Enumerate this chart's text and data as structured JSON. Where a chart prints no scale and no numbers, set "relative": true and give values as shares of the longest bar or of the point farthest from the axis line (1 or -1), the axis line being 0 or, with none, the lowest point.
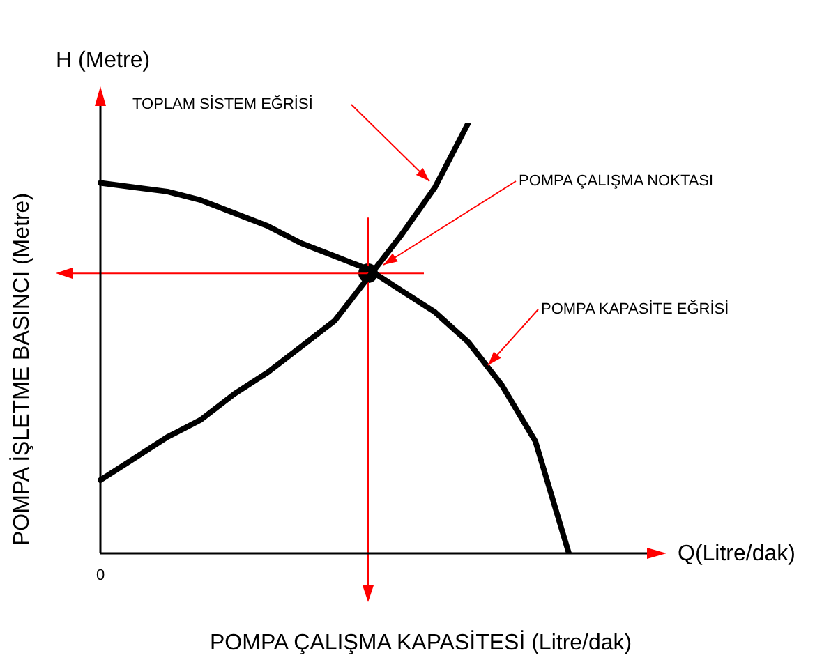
{
  "chart_data": {
    "type": "line",
    "relative": true,
    "xlabel": "POMPA ÇALIŞMA KAPASİTESİ (Litre/dak)",
    "ylabel": "POMPA İŞLETME BASINCI (Metre)",
    "categories": [
      null,
      null,
      null,
      null,
      null,
      null,
      null,
      null,
      null,
      null,
      null,
      null,
      null,
      null,
      null
    ],
    "series": [
      {
        "color": "#000000",
        "values": [
          0.86,
          0.85,
          0.84,
          0.82,
          0.79,
          0.76,
          0.72,
          0.69,
          0.66,
          0.61,
          0.56,
          0.49,
          0.39,
          0.26,
          0
        ]
      },
      {
        "color": "#000000",
        "values": [
          0.17,
          0.22,
          0.27,
          0.31,
          0.37,
          0.42,
          0.48,
          0.54,
          0.64,
          0.74,
          0.85,
          1,
          null,
          null,
          null
        ]
      }
    ],
    "marker": "none",
    "line_style": "solid",
    "ref_lines": [
      {
        "axis": "y",
        "value": 0.65,
        "color": "#ff0000"
      }
    ],
    "annotations": [
      "H (Metre)",
      "Q(Litre/dak)",
      "0",
      "TOPLAM SİSTEM EĞRİSİ",
      "POMPA ÇALIŞMA NOKTASI",
      "POMPA KAPASİTE EĞRİSİ"
    ]
  }
}
